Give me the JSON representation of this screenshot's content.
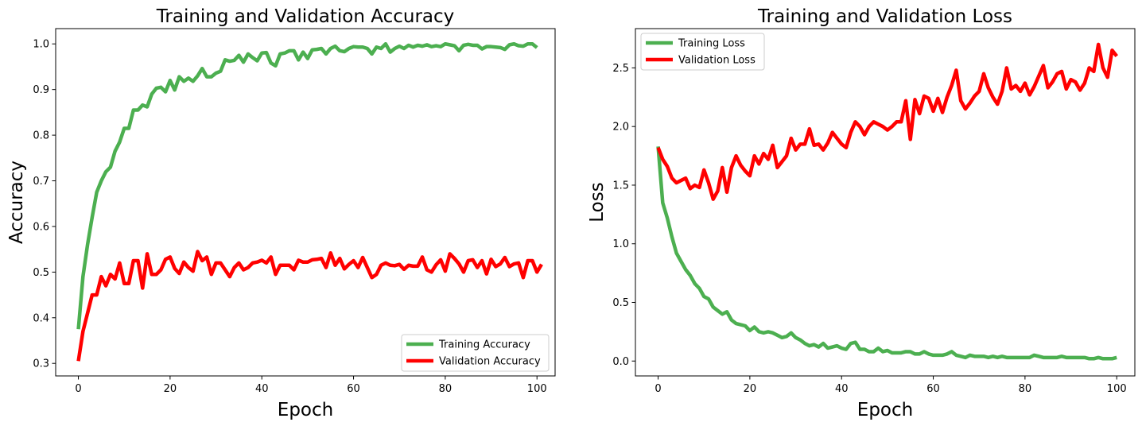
{
  "chart_data": [
    {
      "type": "line",
      "title": "Training and Validation Accuracy",
      "xlabel": "Epoch",
      "ylabel": "Accuracy",
      "xlim": [
        -4.95,
        103.95
      ],
      "ylim": [
        0.2725,
        1.0335
      ],
      "xticks": [
        0,
        20,
        40,
        60,
        80,
        100
      ],
      "yticks": [
        0.3,
        0.4,
        0.5,
        0.6,
        0.7,
        0.8,
        0.9,
        1.0
      ],
      "ytick_labels": [
        "0.3",
        "0.4",
        "0.5",
        "0.6",
        "0.7",
        "0.8",
        "0.9",
        "1.0"
      ],
      "legend": "lower-right",
      "series": [
        {
          "name": "Training Accuracy",
          "color": "#4caf50",
          "values": [
            0.375,
            0.49,
            0.56,
            0.62,
            0.675,
            0.7,
            0.72,
            0.73,
            0.765,
            0.785,
            0.815,
            0.815,
            0.855,
            0.855,
            0.866,
            0.862,
            0.89,
            0.903,
            0.905,
            0.895,
            0.92,
            0.899,
            0.928,
            0.918,
            0.925,
            0.918,
            0.93,
            0.946,
            0.928,
            0.928,
            0.936,
            0.94,
            0.965,
            0.962,
            0.964,
            0.975,
            0.96,
            0.978,
            0.97,
            0.963,
            0.98,
            0.981,
            0.958,
            0.952,
            0.978,
            0.98,
            0.985,
            0.985,
            0.965,
            0.982,
            0.968,
            0.987,
            0.988,
            0.99,
            0.978,
            0.99,
            0.995,
            0.985,
            0.983,
            0.99,
            0.994,
            0.993,
            0.993,
            0.99,
            0.978,
            0.993,
            0.99,
            1.0,
            0.982,
            0.99,
            0.995,
            0.99,
            0.997,
            0.993,
            0.997,
            0.995,
            0.998,
            0.994,
            0.996,
            0.994,
            1.0,
            0.998,
            0.996,
            0.985,
            0.997,
            0.999,
            0.997,
            0.997,
            0.989,
            0.994,
            0.994,
            0.993,
            0.992,
            0.988,
            0.998,
            1.0,
            0.996,
            0.995,
            1.0,
            1.0,
            0.992
          ]
        },
        {
          "name": "Validation Accuracy",
          "color": "#ff0000",
          "values": [
            0.305,
            0.37,
            0.41,
            0.45,
            0.45,
            0.49,
            0.47,
            0.495,
            0.485,
            0.52,
            0.475,
            0.475,
            0.525,
            0.525,
            0.465,
            0.54,
            0.495,
            0.495,
            0.505,
            0.528,
            0.533,
            0.508,
            0.497,
            0.522,
            0.51,
            0.502,
            0.545,
            0.525,
            0.533,
            0.495,
            0.52,
            0.52,
            0.505,
            0.49,
            0.51,
            0.52,
            0.505,
            0.51,
            0.52,
            0.522,
            0.526,
            0.52,
            0.533,
            0.495,
            0.515,
            0.515,
            0.515,
            0.505,
            0.526,
            0.522,
            0.522,
            0.527,
            0.528,
            0.53,
            0.51,
            0.542,
            0.515,
            0.53,
            0.507,
            0.517,
            0.525,
            0.51,
            0.532,
            0.51,
            0.488,
            0.495,
            0.515,
            0.52,
            0.515,
            0.514,
            0.517,
            0.506,
            0.515,
            0.513,
            0.513,
            0.533,
            0.505,
            0.5,
            0.516,
            0.527,
            0.502,
            0.54,
            0.53,
            0.518,
            0.5,
            0.525,
            0.527,
            0.51,
            0.525,
            0.496,
            0.528,
            0.512,
            0.518,
            0.532,
            0.512,
            0.518,
            0.52,
            0.488,
            0.525,
            0.525,
            0.5,
            0.517
          ]
        }
      ]
    },
    {
      "type": "line",
      "title": "Training and Validation Loss",
      "xlabel": "Epoch",
      "ylabel": "Loss",
      "xlim": [
        -4.95,
        103.95
      ],
      "ylim": [
        -0.127,
        2.835
      ],
      "xticks": [
        0,
        20,
        40,
        60,
        80,
        100
      ],
      "yticks": [
        0.0,
        0.5,
        1.0,
        1.5,
        2.0,
        2.5
      ],
      "ytick_labels": [
        "0.0",
        "0.5",
        "1.0",
        "1.5",
        "2.0",
        "2.5"
      ],
      "legend": "upper-left",
      "series": [
        {
          "name": "Training Loss",
          "color": "#4caf50",
          "values": [
            1.83,
            1.35,
            1.22,
            1.06,
            0.92,
            0.85,
            0.78,
            0.73,
            0.66,
            0.62,
            0.55,
            0.53,
            0.46,
            0.43,
            0.4,
            0.42,
            0.35,
            0.32,
            0.31,
            0.3,
            0.26,
            0.29,
            0.25,
            0.24,
            0.25,
            0.24,
            0.22,
            0.2,
            0.21,
            0.24,
            0.2,
            0.18,
            0.15,
            0.13,
            0.14,
            0.12,
            0.15,
            0.11,
            0.12,
            0.13,
            0.11,
            0.1,
            0.15,
            0.16,
            0.1,
            0.1,
            0.08,
            0.08,
            0.11,
            0.08,
            0.09,
            0.07,
            0.07,
            0.07,
            0.08,
            0.08,
            0.06,
            0.06,
            0.08,
            0.06,
            0.05,
            0.05,
            0.05,
            0.06,
            0.08,
            0.05,
            0.04,
            0.03,
            0.05,
            0.04,
            0.04,
            0.04,
            0.03,
            0.04,
            0.03,
            0.04,
            0.03,
            0.03,
            0.03,
            0.03,
            0.03,
            0.03,
            0.05,
            0.04,
            0.03,
            0.03,
            0.03,
            0.03,
            0.04,
            0.03,
            0.03,
            0.03,
            0.03,
            0.03,
            0.02,
            0.02,
            0.03,
            0.02,
            0.02,
            0.02,
            0.03
          ]
        },
        {
          "name": "Validation Loss",
          "color": "#ff0000",
          "values": [
            1.82,
            1.72,
            1.66,
            1.56,
            1.52,
            1.54,
            1.56,
            1.47,
            1.5,
            1.48,
            1.63,
            1.52,
            1.38,
            1.45,
            1.65,
            1.44,
            1.65,
            1.75,
            1.67,
            1.62,
            1.58,
            1.75,
            1.68,
            1.77,
            1.72,
            1.84,
            1.65,
            1.7,
            1.75,
            1.9,
            1.8,
            1.85,
            1.85,
            1.98,
            1.84,
            1.85,
            1.8,
            1.86,
            1.95,
            1.9,
            1.85,
            1.82,
            1.95,
            2.04,
            2.0,
            1.93,
            2.0,
            2.04,
            2.02,
            2.0,
            1.97,
            2.0,
            2.04,
            2.04,
            2.22,
            1.89,
            2.23,
            2.11,
            2.26,
            2.24,
            2.13,
            2.24,
            2.12,
            2.25,
            2.35,
            2.48,
            2.22,
            2.15,
            2.2,
            2.26,
            2.3,
            2.45,
            2.33,
            2.25,
            2.19,
            2.3,
            2.5,
            2.32,
            2.35,
            2.3,
            2.37,
            2.27,
            2.34,
            2.43,
            2.52,
            2.33,
            2.38,
            2.45,
            2.47,
            2.32,
            2.4,
            2.38,
            2.31,
            2.37,
            2.5,
            2.47,
            2.7,
            2.5,
            2.42,
            2.65,
            2.6
          ]
        }
      ]
    }
  ]
}
